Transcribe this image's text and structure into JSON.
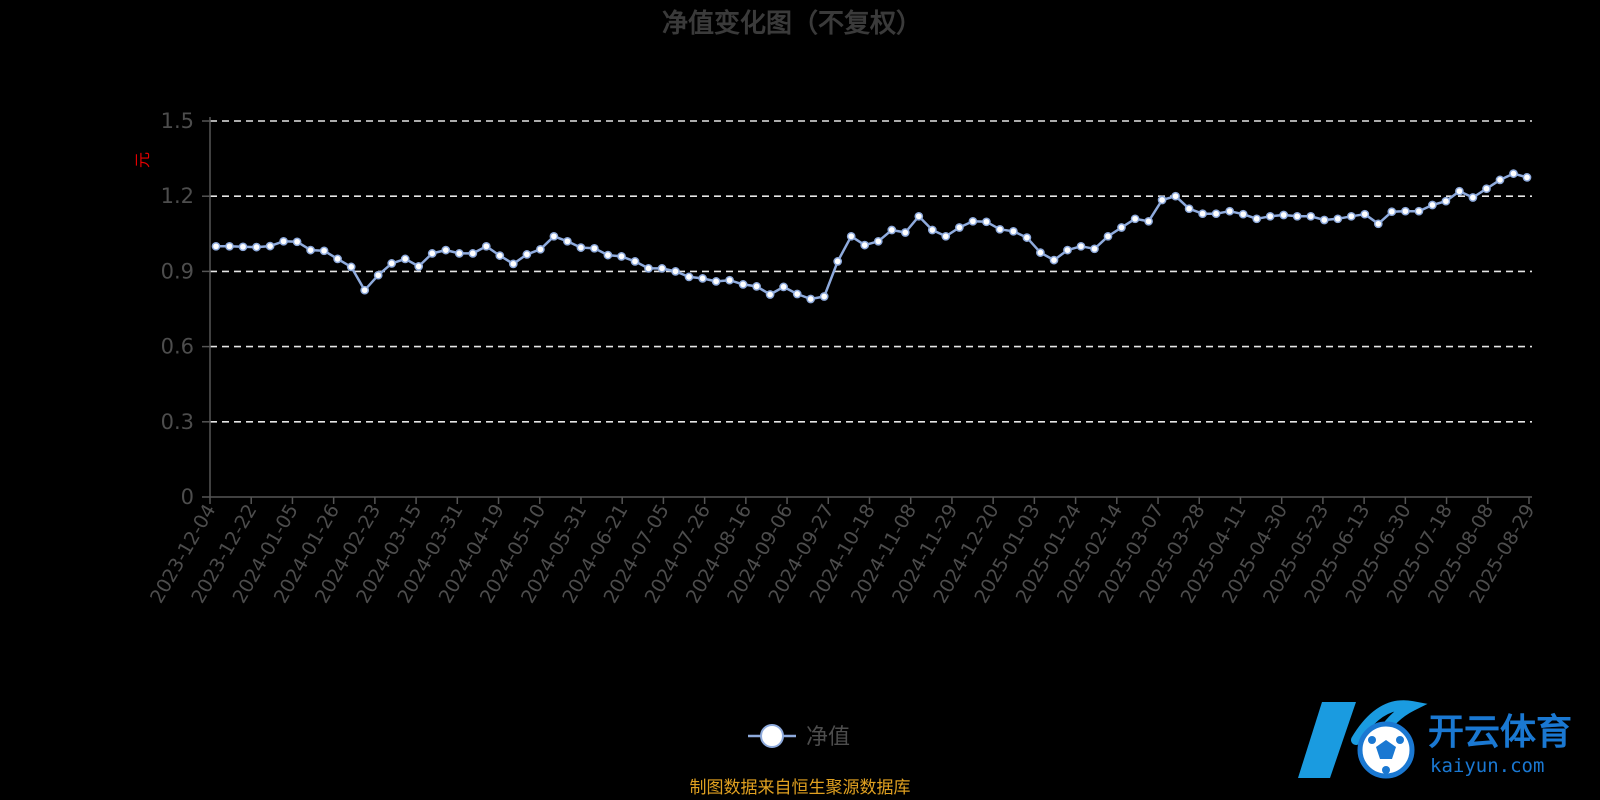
{
  "chart_data": {
    "type": "line",
    "title": "净值变化图（不复权）",
    "ylabel": "元",
    "ylim": [
      0,
      1.5
    ],
    "yticks": [
      0,
      0.3,
      0.6,
      0.9,
      1.2,
      1.5
    ],
    "grid": true,
    "legend_position": "bottom-center",
    "x_tick_labels": [
      "2023-12-04",
      "2023-12-22",
      "2024-01-05",
      "2024-01-26",
      "2024-02-23",
      "2024-03-15",
      "2024-03-31",
      "2024-04-19",
      "2024-05-10",
      "2024-05-31",
      "2024-06-21",
      "2024-07-05",
      "2024-07-26",
      "2024-08-16",
      "2024-09-06",
      "2024-09-27",
      "2024-10-18",
      "2024-11-08",
      "2024-11-29",
      "2024-12-20",
      "2025-01-03",
      "2025-01-24",
      "2025-02-14",
      "2025-03-07",
      "2025-03-28",
      "2025-04-11",
      "2025-04-30",
      "2025-05-23",
      "2025-06-13",
      "2025-06-30",
      "2025-07-18",
      "2025-08-08",
      "2025-08-29"
    ],
    "series": [
      {
        "name": "净值",
        "color": "#8eaadc",
        "values": [
          1.0,
          1.0,
          0.998,
          0.997,
          1.001,
          1.02,
          1.018,
          0.985,
          0.982,
          0.95,
          0.918,
          0.825,
          0.885,
          0.932,
          0.95,
          0.92,
          0.972,
          0.985,
          0.972,
          0.972,
          1.0,
          0.963,
          0.93,
          0.968,
          0.988,
          1.04,
          1.02,
          0.995,
          0.992,
          0.965,
          0.96,
          0.94,
          0.912,
          0.912,
          0.9,
          0.878,
          0.872,
          0.86,
          0.865,
          0.848,
          0.84,
          0.808,
          0.838,
          0.81,
          0.79,
          0.8,
          0.94,
          1.04,
          1.005,
          1.02,
          1.065,
          1.055,
          1.12,
          1.065,
          1.04,
          1.075,
          1.1,
          1.098,
          1.068,
          1.06,
          1.035,
          0.975,
          0.945,
          0.985,
          1.0,
          0.99,
          1.04,
          1.075,
          1.11,
          1.1,
          1.185,
          1.2,
          1.15,
          1.13,
          1.13,
          1.14,
          1.128,
          1.11,
          1.12,
          1.125,
          1.12,
          1.12,
          1.105,
          1.11,
          1.12,
          1.128,
          1.09,
          1.138,
          1.14,
          1.14,
          1.165,
          1.18,
          1.22,
          1.195,
          1.23,
          1.265,
          1.29,
          1.275
        ]
      }
    ]
  },
  "footer": {
    "source": "制图数据来自恒生聚源数据库"
  },
  "watermark": {
    "cn": "开云体育",
    "en": "kaiyun.com",
    "icon": "k-soccer-ball-logo-icon",
    "color": "#1a78d2"
  }
}
